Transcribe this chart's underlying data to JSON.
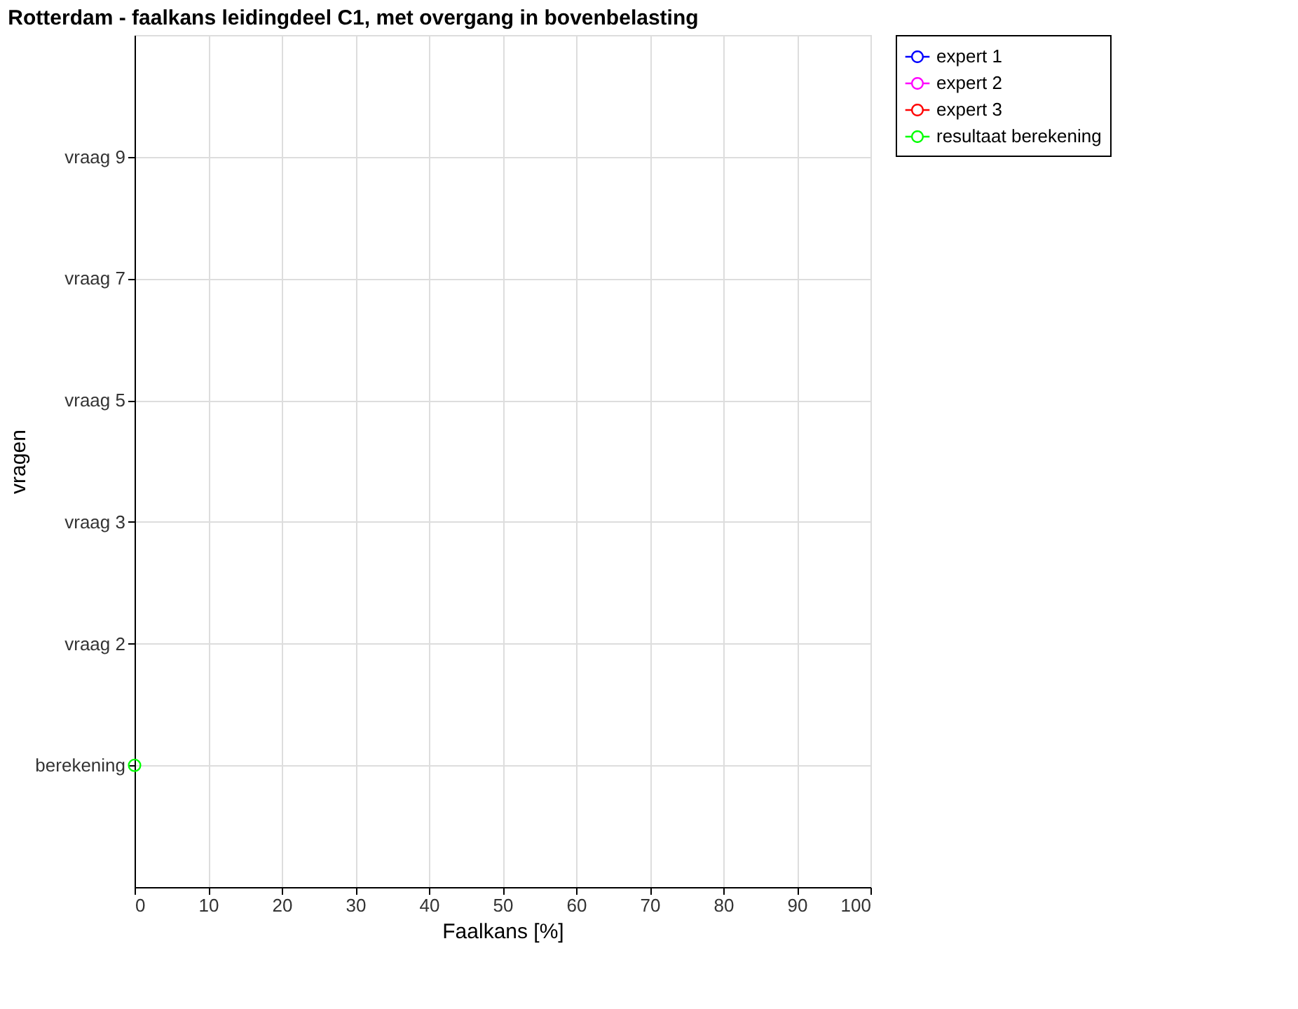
{
  "chart_data": {
    "type": "line",
    "orientation": "horizontal",
    "title": "Rotterdam - faalkans leidingdeel C1, met overgang in bovenbelasting",
    "xlabel": "Faalkans [%]",
    "ylabel": "vragen",
    "categories": [
      "vraag 9",
      "vraag 7",
      "vraag 5",
      "vraag 3",
      "vraag 2",
      "berekening"
    ],
    "series": [
      {
        "name": "expert 1",
        "color": "#0000ff",
        "values": [
          null,
          null,
          null,
          null,
          null,
          null
        ]
      },
      {
        "name": "expert 2",
        "color": "#ff00ff",
        "values": [
          null,
          null,
          null,
          null,
          null,
          null
        ]
      },
      {
        "name": "expert 3",
        "color": "#ff0000",
        "values": [
          null,
          null,
          null,
          null,
          null,
          null
        ]
      },
      {
        "name": "resultaat berekening",
        "color": "#00ff00",
        "values": [
          null,
          null,
          null,
          null,
          null,
          0
        ]
      }
    ],
    "xlim": [
      0,
      100
    ],
    "xticks": [
      0,
      10,
      20,
      30,
      40,
      50,
      60,
      70,
      80,
      90,
      100
    ],
    "grid": true,
    "legend": "right",
    "marker": "circle",
    "line_style": "solid"
  }
}
